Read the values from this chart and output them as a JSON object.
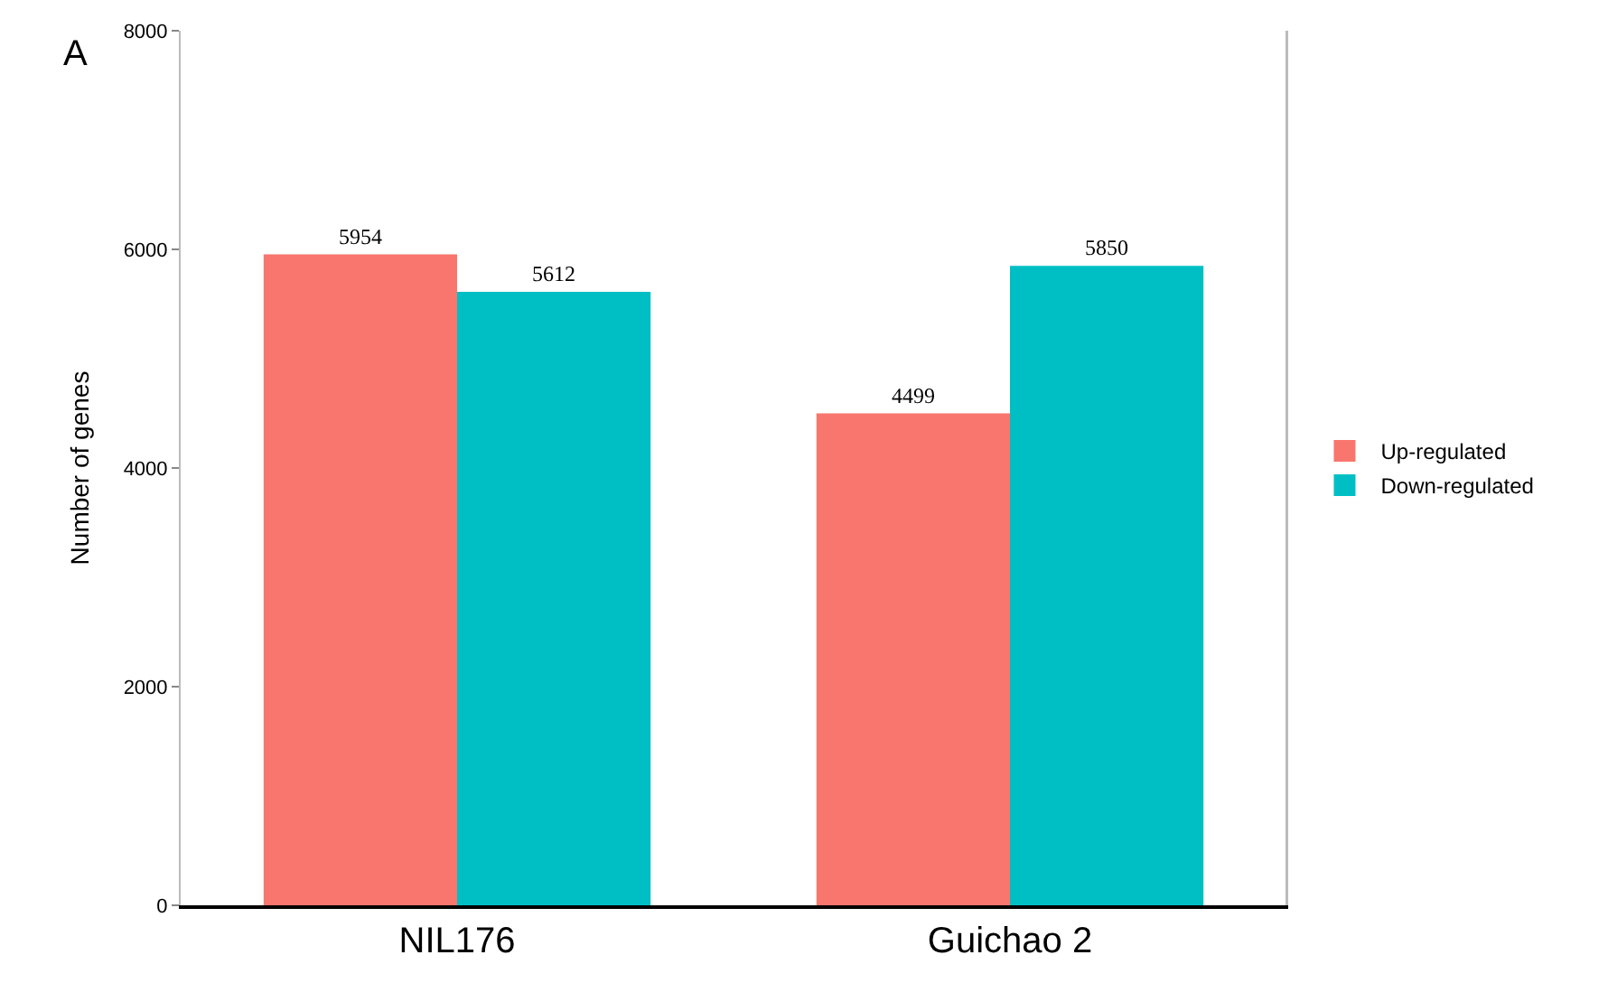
{
  "chart_data": {
    "type": "bar",
    "ylabel": "Number of genes",
    "categories": [
      "NIL176",
      "Guichao 2"
    ],
    "series": [
      {
        "name": "Up-regulated",
        "color": "#f8766d",
        "values": [
          5954,
          4499
        ]
      },
      {
        "name": "Down-regulated",
        "color": "#00bfc4",
        "values": [
          5612,
          5850
        ]
      }
    ],
    "ylim": [
      0,
      8000
    ],
    "yticks": [
      0,
      2000,
      4000,
      6000,
      8000
    ],
    "legend": "right",
    "data_labels": true,
    "annotations": [
      "A"
    ]
  }
}
